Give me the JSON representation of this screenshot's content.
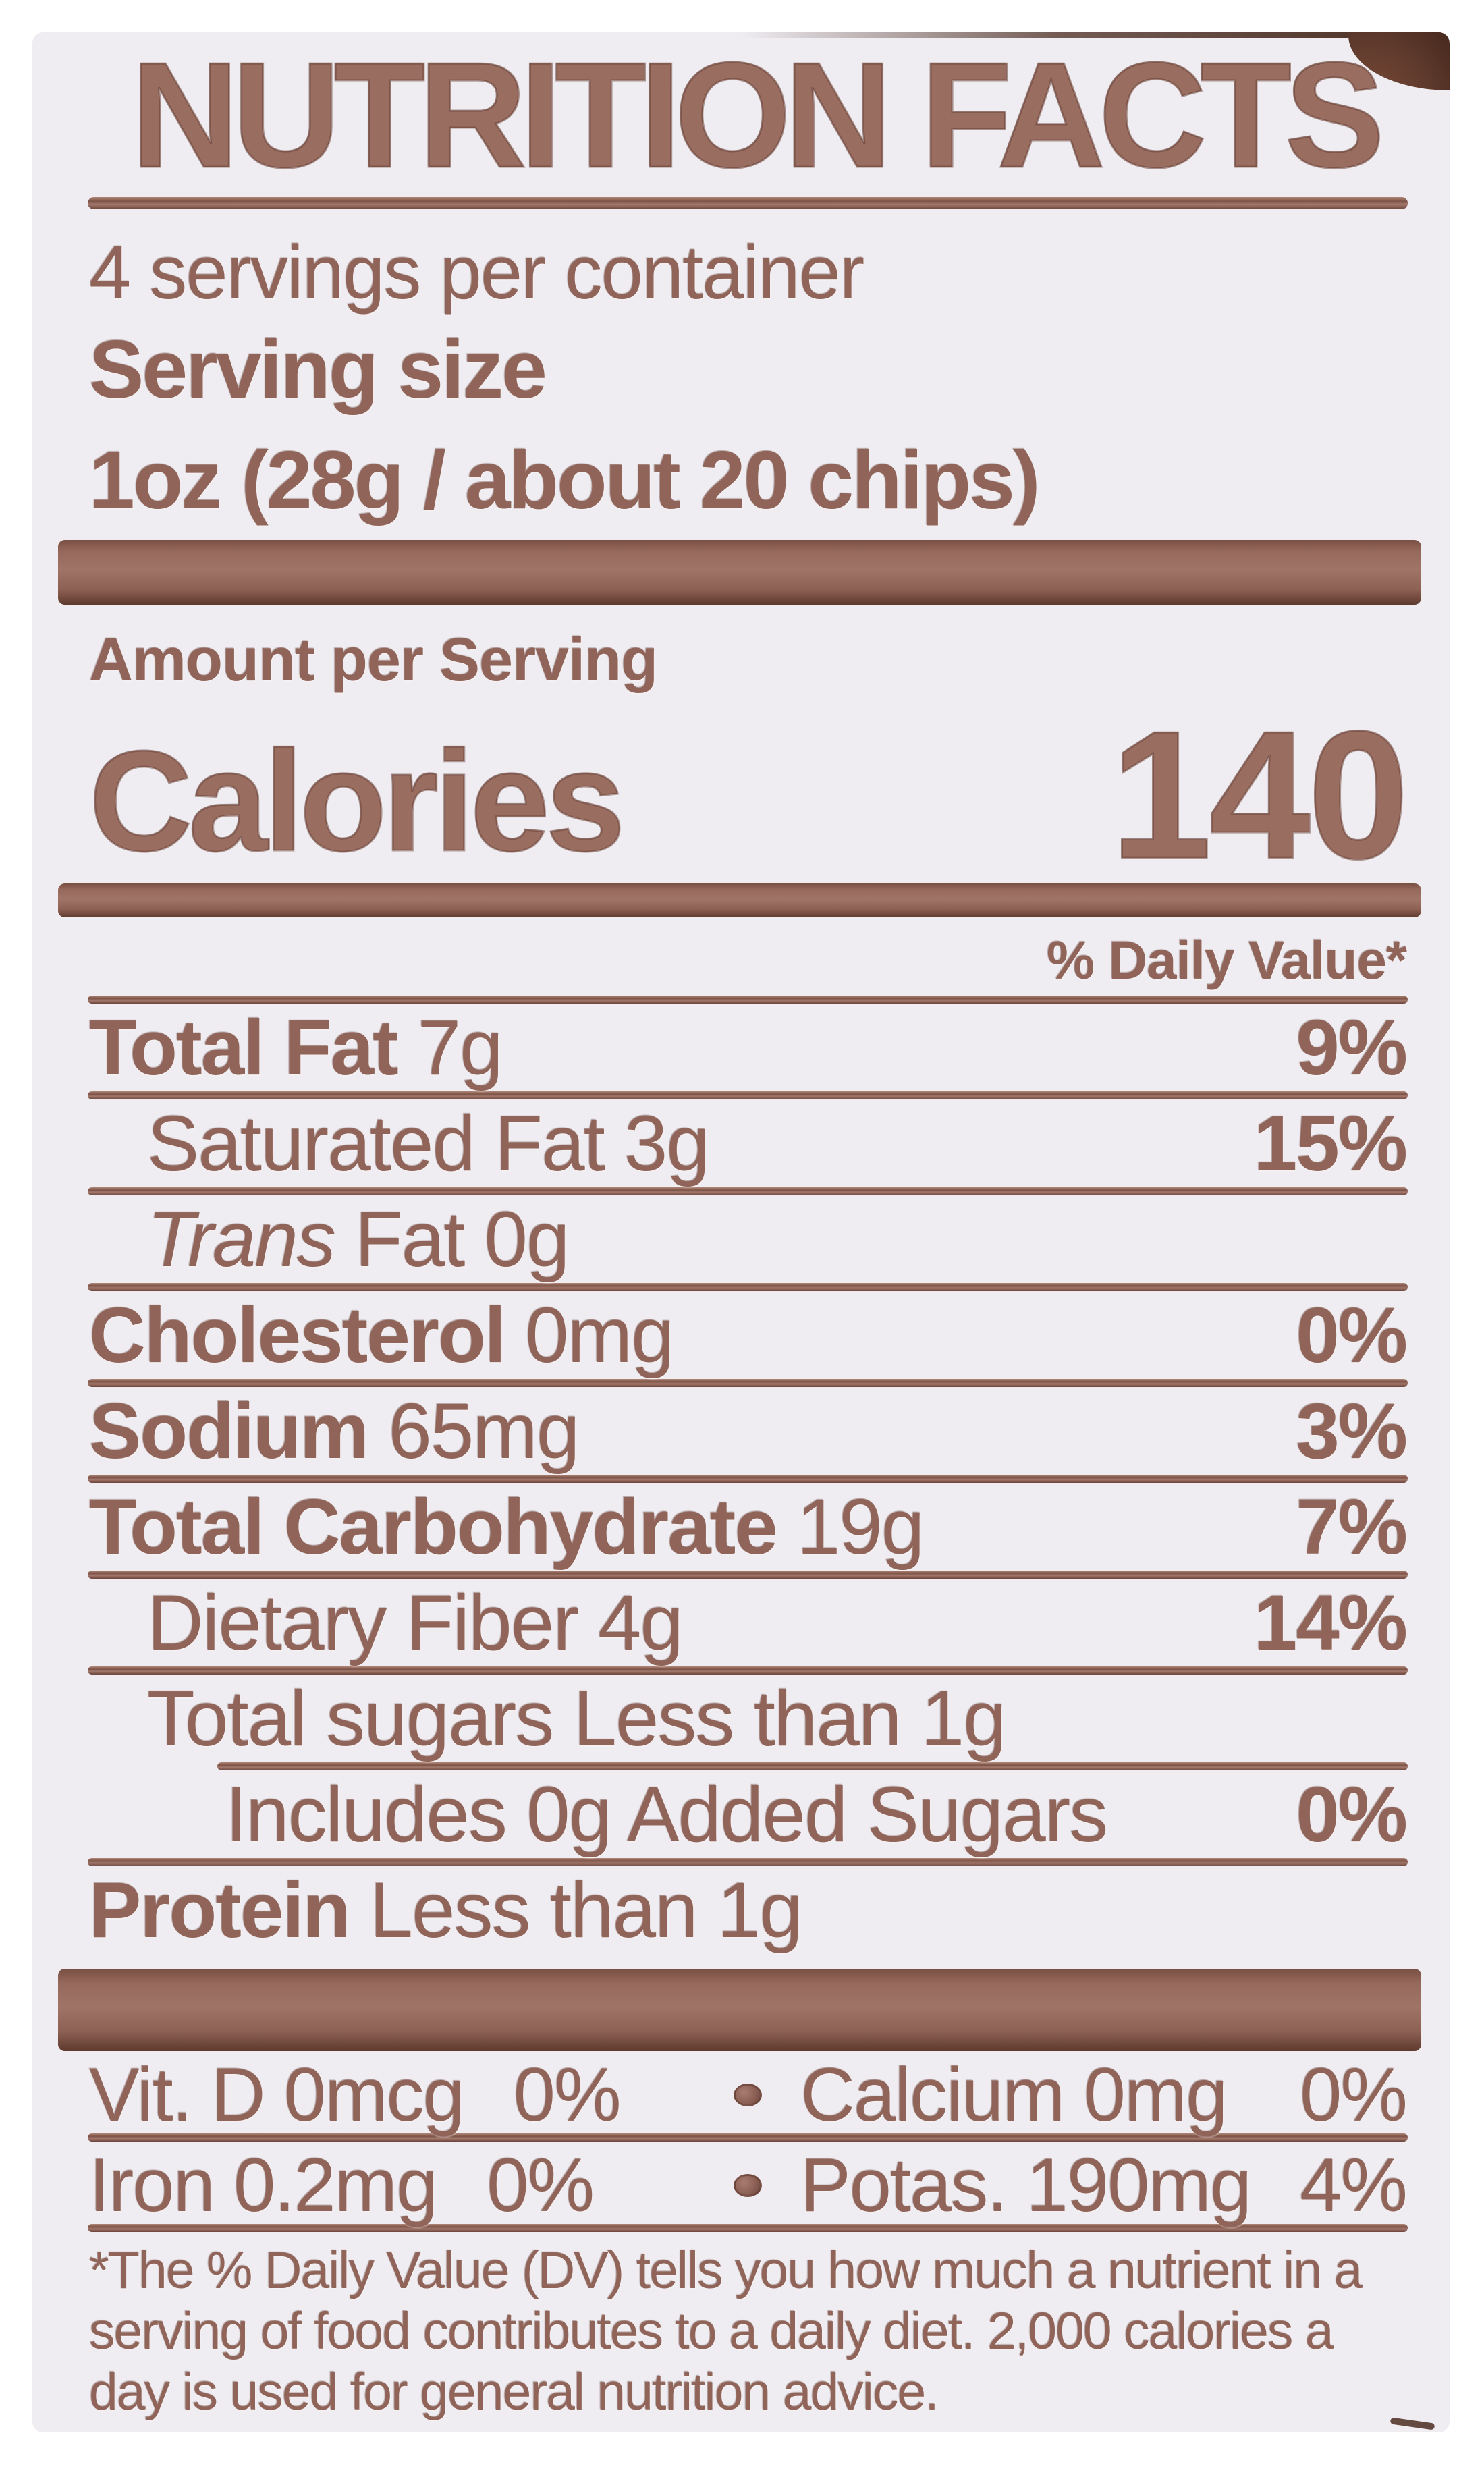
{
  "colors": {
    "page_bg": "#ffffff",
    "label_bg": "#efedf2",
    "text_brown": "#906458",
    "outline_brown": "#6d453c",
    "bar_mid": "#a07467",
    "package_dark": "#5d392c"
  },
  "label": {
    "title": "NUTRITION FACTS",
    "servings_per_container": "4 servings per container",
    "serving_size": {
      "label": "Serving size",
      "value": "1oz (28g / about 20 chips)"
    },
    "amount_per_serving": "Amount per Serving",
    "calories": {
      "label": "Calories",
      "value": "140"
    },
    "daily_value_header": "% Daily Value*",
    "rows": [
      {
        "name": "Total Fat",
        "amount": "7g",
        "dv": "9%"
      },
      {
        "name": "Saturated Fat",
        "amount": "3g",
        "dv": "15%"
      },
      {
        "name_italic": "Trans",
        "name": "Fat",
        "amount": "0g",
        "dv": ""
      },
      {
        "name": "Cholesterol",
        "amount": "0mg",
        "dv": "0%"
      },
      {
        "name": "Sodium",
        "amount": "65mg",
        "dv": "3%"
      },
      {
        "name": "Total Carbohydrate",
        "amount": "19g",
        "dv": "7%"
      },
      {
        "name": "Dietary Fiber",
        "amount": "4g",
        "dv": "14%"
      },
      {
        "name": "Total sugars",
        "amount": "Less than 1g",
        "dv": ""
      },
      {
        "name": "Includes 0g Added Sugars",
        "amount": "",
        "dv": "0%"
      },
      {
        "name": "Protein",
        "amount": "Less than 1g",
        "dv": ""
      }
    ],
    "micronutrients": [
      {
        "name": "Vit. D 0mcg",
        "dv": "0%"
      },
      {
        "name": "Calcium 0mg",
        "dv": "0%"
      },
      {
        "name": "Iron 0.2mg",
        "dv": "0%"
      },
      {
        "name": "Potas. 190mg",
        "dv": "4%"
      }
    ],
    "footnote": {
      "lines": [
        "*The % Daily Value (DV) tells you how much a nutrient in a",
        "serving of food contributes to a daily diet. 2,000 calories a",
        "day is used for general nutrition advice."
      ]
    }
  }
}
